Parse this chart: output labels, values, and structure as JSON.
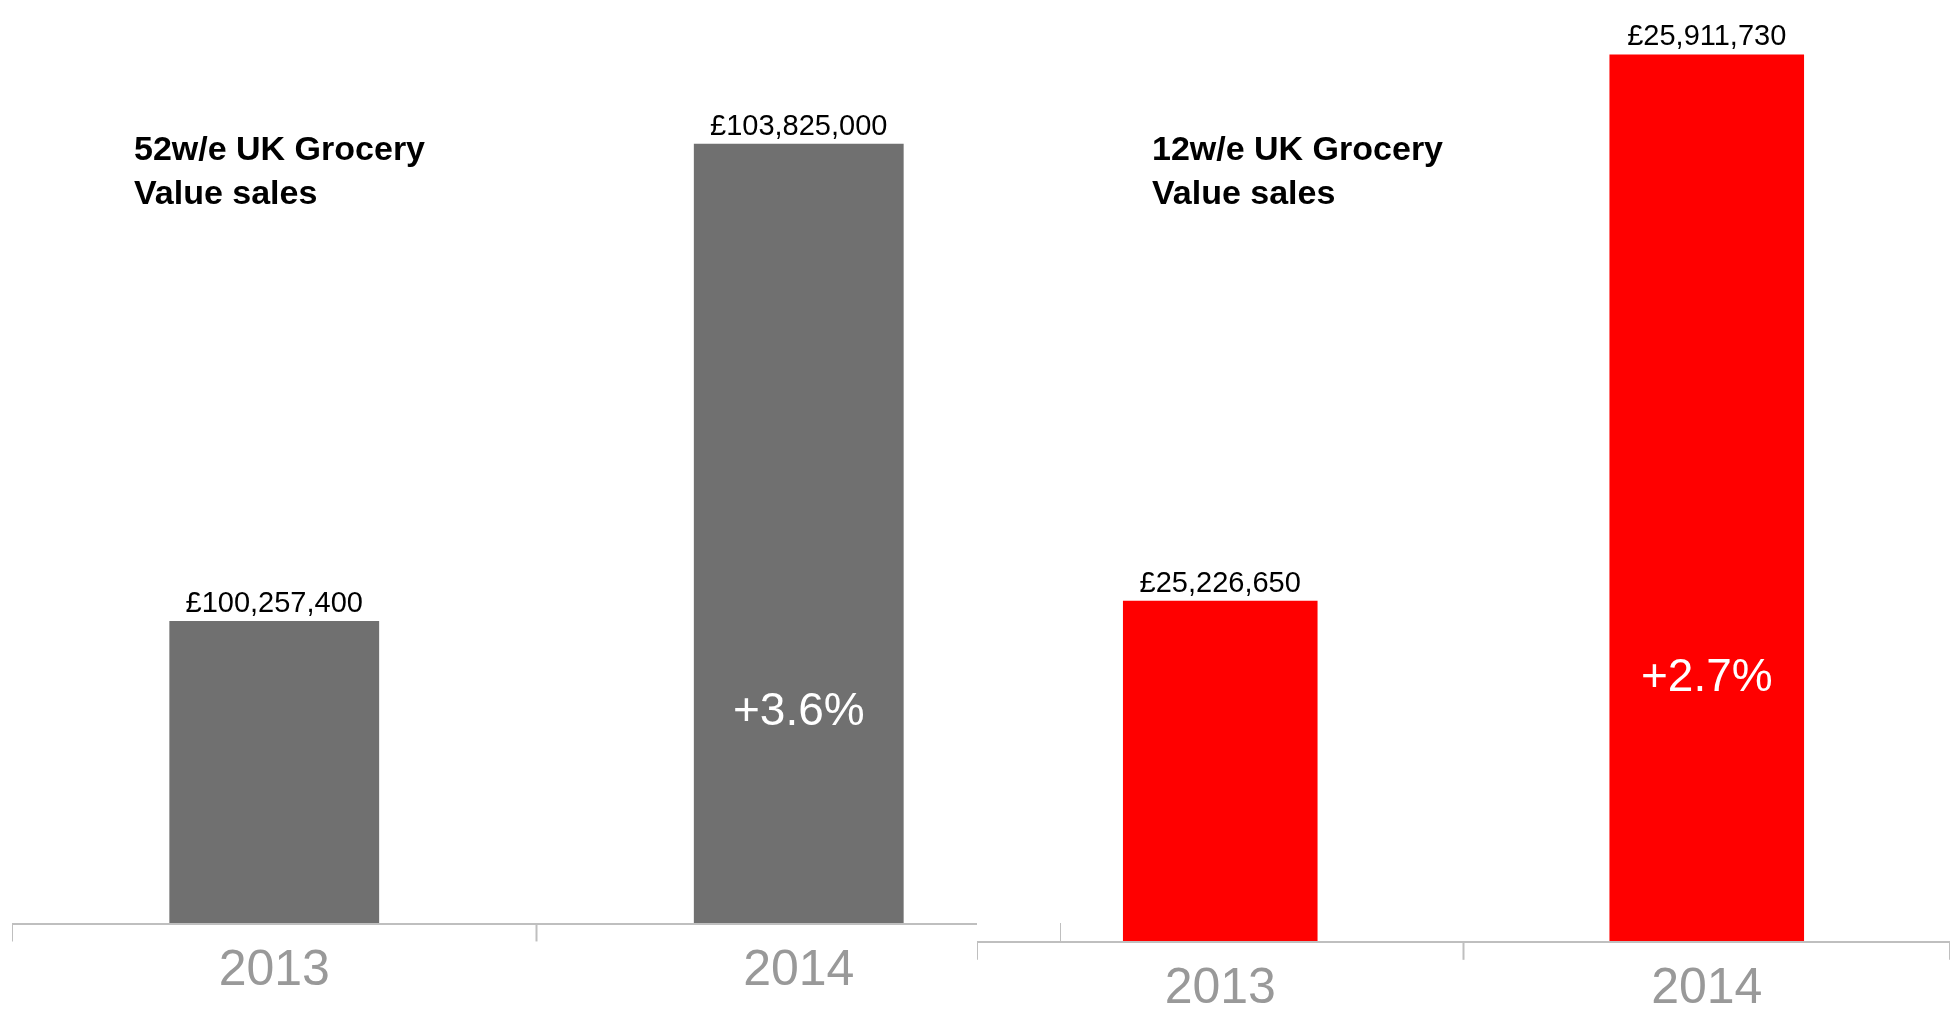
{
  "chart_data": [
    {
      "type": "bar",
      "title": "52w/e UK Grocery\nValue sales",
      "categories": [
        "2013",
        "2014"
      ],
      "values": [
        100257400,
        103825000
      ],
      "color": "#707070",
      "value_labels": [
        "£100,257,400",
        "£103,825,000"
      ],
      "annotations": [
        "+3.6%"
      ],
      "ylim": [
        98000000,
        104900000
      ],
      "tick_labels": "x"
    },
    {
      "type": "bar",
      "title": "12w/e UK Grocery\nValue sales",
      "categories": [
        "2013",
        "2014"
      ],
      "values": [
        25226650,
        25911730
      ],
      "color": "#ff0000",
      "value_labels": [
        "£25,226,650",
        "£25,911,730"
      ],
      "annotations": [
        "+2.7%"
      ],
      "ylim": [
        24800000,
        25980000
      ],
      "tick_labels": "x"
    }
  ]
}
